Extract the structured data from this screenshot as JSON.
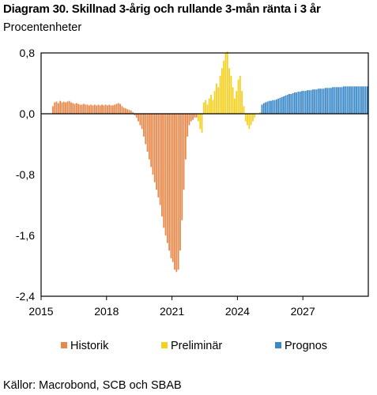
{
  "title": "Diagram 30. Skillnad 3-årig och rullande 3-mån ränta i 3 år",
  "subtitle": "Procentenheter",
  "source": "Källor: Macrobond, SCB och SBAB",
  "colors": {
    "Historik": "#e8884a",
    "Preliminär": "#f5d020",
    "Prognos": "#3a88c8"
  },
  "chart_data": {
    "type": "bar",
    "title": "Diagram 30. Skillnad 3-årig och rullande 3-mån ränta i 3 år",
    "subtitle": "Procentenheter",
    "xlabel": "",
    "ylabel": "",
    "ylim": [
      -2.4,
      0.8
    ],
    "y_ticks": [
      "0,8",
      "0,0",
      "-0,8",
      "-1,6",
      "-2,4"
    ],
    "x_ticks": [
      "2015",
      "2018",
      "2021",
      "2024",
      "2027"
    ],
    "grid": false,
    "legend_position": "bottom",
    "series": [
      {
        "name": "Historik",
        "x_start": "2015-07",
        "x_end": "2022-02",
        "values": [
          0.1,
          0.15,
          0.16,
          0.14,
          0.17,
          0.15,
          0.16,
          0.15,
          0.16,
          0.17,
          0.15,
          0.14,
          0.13,
          0.14,
          0.13,
          0.12,
          0.12,
          0.13,
          0.12,
          0.12,
          0.11,
          0.12,
          0.11,
          0.12,
          0.11,
          0.12,
          0.11,
          0.12,
          0.11,
          0.12,
          0.11,
          0.12,
          0.11,
          0.11,
          0.12,
          0.13,
          0.14,
          0.13,
          0.1,
          0.08,
          0.07,
          0.06,
          0.05,
          0.04,
          0.02,
          -0.02,
          -0.05,
          -0.1,
          -0.15,
          -0.2,
          -0.3,
          -0.4,
          -0.5,
          -0.6,
          -0.7,
          -0.8,
          -0.9,
          -1.0,
          -1.1,
          -1.2,
          -1.35,
          -1.5,
          -1.6,
          -1.7,
          -1.8,
          -1.9,
          -1.95,
          -2.05,
          -2.08,
          -2.05,
          -1.8,
          -1.4,
          -1.0,
          -0.6,
          -0.3,
          -0.15,
          -0.1,
          -0.08,
          -0.05,
          -0.05
        ]
      },
      {
        "name": "Preliminär",
        "x_start": "2022-03",
        "x_end": "2025-01",
        "values": [
          -0.1,
          -0.2,
          -0.25,
          0.15,
          0.18,
          0.12,
          0.2,
          0.25,
          0.18,
          0.3,
          0.4,
          0.35,
          0.5,
          0.6,
          0.7,
          0.8,
          0.82,
          0.6,
          0.5,
          0.35,
          0.2,
          0.3,
          0.45,
          0.5,
          0.3,
          0.1,
          -0.1,
          -0.15,
          -0.2,
          -0.15,
          -0.1,
          -0.05,
          0,
          0,
          0.02,
          0.03
        ]
      },
      {
        "name": "Prognos",
        "x_start": "2025-02",
        "x_end": "2029-12",
        "values": [
          0.12,
          0.14,
          0.15,
          0.16,
          0.17,
          0.17,
          0.18,
          0.18,
          0.19,
          0.2,
          0.21,
          0.22,
          0.23,
          0.24,
          0.25,
          0.26,
          0.26,
          0.27,
          0.28,
          0.28,
          0.29,
          0.29,
          0.3,
          0.3,
          0.3,
          0.31,
          0.31,
          0.31,
          0.32,
          0.32,
          0.32,
          0.33,
          0.33,
          0.33,
          0.33,
          0.34,
          0.34,
          0.34,
          0.34,
          0.35,
          0.35,
          0.35,
          0.35,
          0.35,
          0.35,
          0.36,
          0.36,
          0.36,
          0.36,
          0.36,
          0.36,
          0.36,
          0.36,
          0.36,
          0.36,
          0.36,
          0.36,
          0.36,
          0.36
        ]
      }
    ]
  }
}
